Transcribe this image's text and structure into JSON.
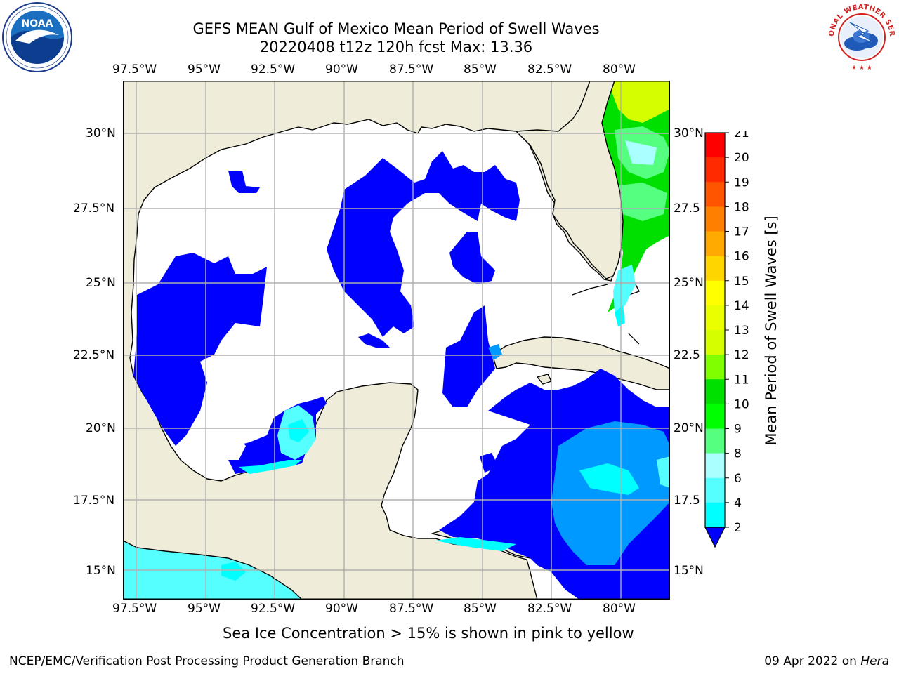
{
  "title_line1": "GEFS MEAN Gulf of Mexico Mean Period of Swell Waves",
  "title_line2": "20220408 t12z 120h fcst   Max: 13.36",
  "lon_labels": [
    "97.5°W",
    "95°W",
    "92.5°W",
    "90°W",
    "87.5°W",
    "85°W",
    "82.5°W",
    "80°W"
  ],
  "lat_labels_left": [
    "30°N",
    "27.5°N",
    "25°N",
    "22.5°N",
    "20°N",
    "17.5°N",
    "15°N"
  ],
  "lat_labels_right": [
    "30°N",
    "27.5",
    "25°N",
    "22.5",
    "20°N",
    "17.5",
    "15°N"
  ],
  "colorbar": {
    "title": "Mean Period of Swell Waves [s]",
    "ticks": [
      "21",
      "20",
      "19",
      "18",
      "17",
      "16",
      "15",
      "14",
      "13",
      "12",
      "11",
      "10",
      "9",
      "8",
      "6",
      "4",
      "2"
    ],
    "colors_top_to_bottom": [
      "#ff0000",
      "#ff2a00",
      "#ff5500",
      "#ff8000",
      "#ffaa00",
      "#ffd500",
      "#ffff00",
      "#eaff00",
      "#d5ff00",
      "#80ff00",
      "#00e000",
      "#00ff00",
      "#55ff80",
      "#aaffff",
      "#55ffff",
      "#00ffff",
      "#0099ff",
      "#0000ff"
    ]
  },
  "legend_note": "Sea Ice Concentration > 15% is shown in pink to yellow",
  "credit": "NCEP/EMC/Verification Post Processing Product Generation Branch",
  "date": "09 Apr 2022 on",
  "host": "Hera",
  "colors": {
    "land": "#efedd9",
    "ocean_blank": "#ffffff",
    "grid": "#b0b0b0"
  },
  "logos": {
    "left": "NOAA",
    "right": "NATIONAL WEATHER SERVICE"
  }
}
